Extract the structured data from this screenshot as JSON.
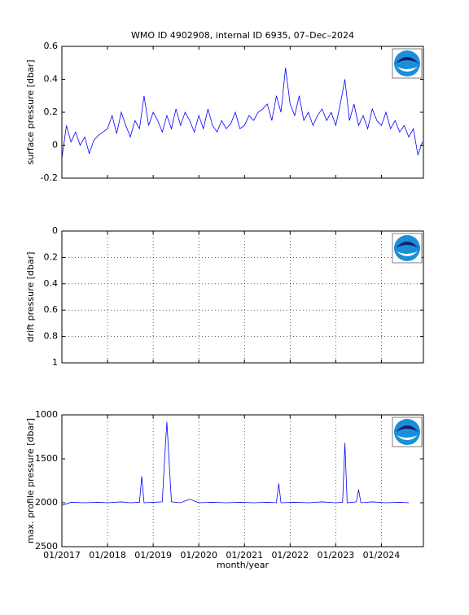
{
  "chart_data": [
    {
      "type": "line",
      "title": "WMO ID 4902908, internal ID 6935, 07–Dec–2024",
      "y_label": "surface pressure [dbar]",
      "color": "#0000ff",
      "xlim": [
        2017,
        2024.92
      ],
      "xticks": [
        2017,
        2018,
        2019,
        2020,
        2021,
        2022,
        2023,
        2024
      ],
      "ylim": [
        -0.2,
        0.6
      ],
      "yticks": [
        -0.2,
        0,
        0.2,
        0.4,
        0.6
      ],
      "xgrid": false,
      "ygrid": false,
      "yreverse": false,
      "x": [
        2017,
        2017.1,
        2017.2,
        2017.3,
        2017.4,
        2017.5,
        2017.6,
        2017.7,
        2017.8,
        2017.9,
        2018,
        2018.1,
        2018.2,
        2018.3,
        2018.4,
        2018.5,
        2018.6,
        2018.7,
        2018.8,
        2018.9,
        2019,
        2019.1,
        2019.2,
        2019.3,
        2019.4,
        2019.5,
        2019.6,
        2019.7,
        2019.8,
        2019.9,
        2020,
        2020.1,
        2020.2,
        2020.3,
        2020.4,
        2020.5,
        2020.6,
        2020.7,
        2020.8,
        2020.9,
        2021,
        2021.1,
        2021.2,
        2021.3,
        2021.4,
        2021.5,
        2021.6,
        2021.7,
        2021.8,
        2021.9,
        2022,
        2022.1,
        2022.2,
        2022.3,
        2022.4,
        2022.5,
        2022.6,
        2022.7,
        2022.8,
        2022.9,
        2023,
        2023.1,
        2023.2,
        2023.3,
        2023.4,
        2023.5,
        2023.6,
        2023.7,
        2023.8,
        2023.9,
        2024,
        2024.1,
        2024.2,
        2024.3,
        2024.4,
        2024.5,
        2024.6,
        2024.7,
        2024.8,
        2024.9
      ],
      "values": [
        -0.08,
        0.12,
        0.02,
        0.08,
        0,
        0.05,
        -0.05,
        0.03,
        0.06,
        0.08,
        0.1,
        0.18,
        0.07,
        0.2,
        0.12,
        0.05,
        0.15,
        0.1,
        0.3,
        0.12,
        0.2,
        0.15,
        0.08,
        0.18,
        0.1,
        0.22,
        0.12,
        0.2,
        0.15,
        0.08,
        0.18,
        0.1,
        0.22,
        0.12,
        0.08,
        0.15,
        0.1,
        0.13,
        0.2,
        0.1,
        0.12,
        0.18,
        0.15,
        0.2,
        0.22,
        0.25,
        0.15,
        0.3,
        0.2,
        0.47,
        0.25,
        0.18,
        0.3,
        0.15,
        0.2,
        0.12,
        0.18,
        0.22,
        0.15,
        0.2,
        0.12,
        0.25,
        0.4,
        0.15,
        0.25,
        0.12,
        0.18,
        0.1,
        0.22,
        0.15,
        0.12,
        0.2,
        0.1,
        0.15,
        0.08,
        0.12,
        0.05,
        0.1,
        -0.06,
        0.02
      ]
    },
    {
      "type": "line",
      "y_label": "drift pressure [dbar]",
      "color": "#0000ff",
      "xlim": [
        2017,
        2024.92
      ],
      "xticks": [
        2017,
        2018,
        2019,
        2020,
        2021,
        2022,
        2023,
        2024
      ],
      "ylim": [
        0,
        1
      ],
      "yticks": [
        0,
        0.2,
        0.4,
        0.6,
        0.8,
        1
      ],
      "xgrid": true,
      "ygrid": true,
      "yreverse": true,
      "x": [],
      "values": []
    },
    {
      "type": "line",
      "y_label": "max. profile pressure [dbar]",
      "x_label": "month/year",
      "color": "#0000ff",
      "xlim": [
        2017,
        2024.92
      ],
      "xticks": [
        {
          "value": 2017,
          "label": "01/2017"
        },
        {
          "value": 2018,
          "label": "01/2018"
        },
        {
          "value": 2019,
          "label": "01/2019"
        },
        {
          "value": 2020,
          "label": "01/2020"
        },
        {
          "value": 2021,
          "label": "01/2021"
        },
        {
          "value": 2022,
          "label": "01/2022"
        },
        {
          "value": 2023,
          "label": "01/2023"
        },
        {
          "value": 2024,
          "label": "01/2024"
        }
      ],
      "ylim": [
        1000,
        2500
      ],
      "yticks": [
        1000,
        1500,
        2000,
        2500
      ],
      "xgrid": true,
      "ygrid": false,
      "yreverse": true,
      "x": [
        2017,
        2017.2,
        2017.5,
        2017.8,
        2018,
        2018.3,
        2018.5,
        2018.7,
        2018.75,
        2018.8,
        2019,
        2019.2,
        2019.25,
        2019.3,
        2019.4,
        2019.6,
        2019.8,
        2020,
        2020.3,
        2020.6,
        2020.9,
        2021.2,
        2021.5,
        2021.7,
        2021.75,
        2021.8,
        2022.1,
        2022.4,
        2022.7,
        2023,
        2023.15,
        2023.2,
        2023.25,
        2023.45,
        2023.5,
        2023.55,
        2023.8,
        2024.1,
        2024.4,
        2024.6
      ],
      "values": [
        2030,
        1995,
        2000,
        1995,
        2000,
        1990,
        2000,
        1995,
        1700,
        2000,
        1995,
        1990,
        1500,
        1080,
        1990,
        2000,
        1960,
        2000,
        1995,
        2000,
        1995,
        2000,
        1995,
        2000,
        1780,
        2000,
        1995,
        2000,
        1990,
        2000,
        1995,
        1320,
        2000,
        1990,
        1850,
        2000,
        1990,
        2000,
        1995,
        2000
      ]
    }
  ]
}
